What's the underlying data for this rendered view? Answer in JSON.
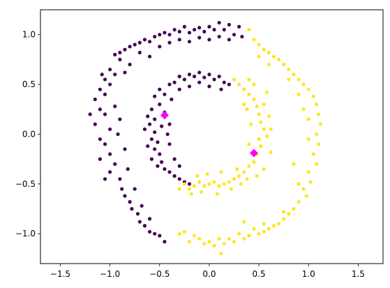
{
  "chart_data": {
    "type": "scatter",
    "title": "",
    "xlabel": "",
    "ylabel": "",
    "xlim": [
      -1.7,
      1.75
    ],
    "ylim": [
      -1.3,
      1.25
    ],
    "x_ticks": [
      -1.5,
      -1.0,
      -0.5,
      0.0,
      0.5,
      1.0,
      1.5
    ],
    "x_tick_labels": [
      "−1.5",
      "−1.0",
      "−0.5",
      "0.0",
      "0.5",
      "1.0",
      "1.5"
    ],
    "y_ticks": [
      -1.0,
      -0.5,
      0.0,
      0.5,
      1.0
    ],
    "y_tick_labels": [
      "−1.0",
      "−0.5",
      "0.0",
      "0.5",
      "1.0"
    ],
    "grid": false,
    "legend": "none",
    "series": [
      {
        "color": "#440154",
        "points": [
          [
            -0.95,
            0.8
          ],
          [
            -0.9,
            0.82
          ],
          [
            -0.85,
            0.85
          ],
          [
            -0.8,
            0.88
          ],
          [
            -0.75,
            0.9
          ],
          [
            -0.7,
            0.92
          ],
          [
            -0.65,
            0.95
          ],
          [
            -0.6,
            0.93
          ],
          [
            -0.55,
            0.98
          ],
          [
            -0.5,
            1.0
          ],
          [
            -0.45,
            1.02
          ],
          [
            -0.4,
            1.0
          ],
          [
            -0.35,
            1.05
          ],
          [
            -0.3,
            1.03
          ],
          [
            -0.25,
            1.08
          ],
          [
            -0.2,
            1.02
          ],
          [
            -0.15,
            1.05
          ],
          [
            -0.1,
            1.07
          ],
          [
            -0.05,
            1.03
          ],
          [
            0.0,
            1.08
          ],
          [
            0.05,
            1.05
          ],
          [
            0.1,
            1.12
          ],
          [
            0.15,
            1.05
          ],
          [
            0.2,
            1.1
          ],
          [
            0.25,
            1.0
          ],
          [
            0.3,
            1.08
          ],
          [
            0.33,
            0.98
          ],
          [
            -0.9,
            0.75
          ],
          [
            -0.8,
            0.7
          ],
          [
            -0.7,
            0.82
          ],
          [
            -0.6,
            0.78
          ],
          [
            -0.5,
            0.88
          ],
          [
            -0.4,
            0.92
          ],
          [
            -0.3,
            0.95
          ],
          [
            -0.2,
            0.93
          ],
          [
            -0.1,
            0.97
          ],
          [
            0.0,
            0.95
          ],
          [
            0.1,
            0.98
          ],
          [
            0.2,
            0.95
          ],
          [
            -1.0,
            0.65
          ],
          [
            -1.05,
            0.55
          ],
          [
            -1.1,
            0.45
          ],
          [
            -1.0,
            0.5
          ],
          [
            -1.15,
            0.35
          ],
          [
            -1.05,
            0.4
          ],
          [
            -1.1,
            0.25
          ],
          [
            -1.2,
            0.2
          ],
          [
            -1.05,
            0.2
          ],
          [
            -1.15,
            0.1
          ],
          [
            -1.0,
            0.05
          ],
          [
            -1.1,
            -0.05
          ],
          [
            -1.05,
            -0.1
          ],
          [
            -1.0,
            -0.2
          ],
          [
            -1.1,
            -0.25
          ],
          [
            -0.95,
            -0.3
          ],
          [
            -1.0,
            -0.38
          ],
          [
            -1.05,
            -0.45
          ],
          [
            -0.9,
            -0.45
          ],
          [
            -0.88,
            -0.55
          ],
          [
            -0.85,
            -0.62
          ],
          [
            -0.8,
            -0.68
          ],
          [
            -0.78,
            -0.75
          ],
          [
            -0.72,
            -0.8
          ],
          [
            -0.7,
            -0.88
          ],
          [
            -0.65,
            -0.92
          ],
          [
            -0.6,
            -0.98
          ],
          [
            -0.55,
            -1.0
          ],
          [
            -0.5,
            -1.02
          ],
          [
            -0.45,
            -1.08
          ],
          [
            -0.95,
            0.28
          ],
          [
            -0.9,
            0.15
          ],
          [
            -0.92,
            0.0
          ],
          [
            -0.85,
            -0.15
          ],
          [
            -0.82,
            -0.35
          ],
          [
            -0.75,
            -0.55
          ],
          [
            -0.68,
            -0.72
          ],
          [
            -0.6,
            -0.85
          ],
          [
            -0.95,
            0.6
          ],
          [
            -0.85,
            0.62
          ],
          [
            -1.08,
            0.6
          ],
          [
            -0.5,
            0.45
          ],
          [
            -0.45,
            0.4
          ],
          [
            -0.4,
            0.5
          ],
          [
            -0.35,
            0.52
          ],
          [
            -0.3,
            0.58
          ],
          [
            -0.25,
            0.55
          ],
          [
            -0.2,
            0.6
          ],
          [
            -0.15,
            0.58
          ],
          [
            -0.1,
            0.62
          ],
          [
            -0.05,
            0.57
          ],
          [
            0.0,
            0.6
          ],
          [
            0.05,
            0.55
          ],
          [
            0.1,
            0.58
          ],
          [
            0.15,
            0.52
          ],
          [
            0.2,
            0.5
          ],
          [
            -0.55,
            0.38
          ],
          [
            -0.5,
            0.3
          ],
          [
            -0.58,
            0.25
          ],
          [
            -0.55,
            0.15
          ],
          [
            -0.6,
            0.1
          ],
          [
            -0.55,
            0.02
          ],
          [
            -0.58,
            -0.05
          ],
          [
            -0.55,
            -0.15
          ],
          [
            -0.5,
            -0.2
          ],
          [
            -0.48,
            -0.28
          ],
          [
            -0.45,
            -0.35
          ],
          [
            -0.4,
            -0.38
          ],
          [
            -0.35,
            -0.42
          ],
          [
            -0.3,
            -0.45
          ],
          [
            -0.25,
            -0.48
          ],
          [
            -0.2,
            -0.5
          ],
          [
            -0.45,
            0.22
          ],
          [
            -0.4,
            0.1
          ],
          [
            -0.42,
            0.0
          ],
          [
            -0.4,
            -0.1
          ],
          [
            -0.35,
            -0.25
          ],
          [
            -0.3,
            -0.32
          ],
          [
            -0.48,
            0.08
          ],
          [
            -0.52,
            -0.08
          ],
          [
            -0.38,
            0.35
          ],
          [
            -0.3,
            0.45
          ],
          [
            -0.2,
            0.48
          ],
          [
            -0.1,
            0.52
          ],
          [
            0.0,
            0.48
          ],
          [
            0.12,
            0.45
          ],
          [
            -0.62,
            0.18
          ],
          [
            -0.65,
            0.05
          ],
          [
            -0.62,
            -0.12
          ],
          [
            -0.58,
            -0.25
          ],
          [
            -0.52,
            -0.32
          ]
        ]
      },
      {
        "color": "#fde725",
        "points": [
          [
            0.4,
            1.05
          ],
          [
            0.45,
            0.95
          ],
          [
            0.5,
            0.9
          ],
          [
            0.55,
            0.85
          ],
          [
            0.6,
            0.82
          ],
          [
            0.65,
            0.78
          ],
          [
            0.7,
            0.75
          ],
          [
            0.75,
            0.7
          ],
          [
            0.8,
            0.65
          ],
          [
            0.85,
            0.6
          ],
          [
            0.9,
            0.55
          ],
          [
            0.95,
            0.5
          ],
          [
            1.0,
            0.45
          ],
          [
            1.05,
            0.38
          ],
          [
            1.08,
            0.3
          ],
          [
            1.1,
            0.2
          ],
          [
            1.12,
            0.1
          ],
          [
            1.08,
            0.0
          ],
          [
            1.1,
            -0.1
          ],
          [
            1.05,
            -0.2
          ],
          [
            1.08,
            -0.3
          ],
          [
            1.0,
            -0.38
          ],
          [
            1.02,
            -0.48
          ],
          [
            0.95,
            -0.55
          ],
          [
            0.98,
            -0.62
          ],
          [
            0.9,
            -0.68
          ],
          [
            0.85,
            -0.75
          ],
          [
            0.8,
            -0.8
          ],
          [
            0.75,
            -0.85
          ],
          [
            0.7,
            -0.9
          ],
          [
            0.65,
            -0.92
          ],
          [
            0.6,
            -0.95
          ],
          [
            0.55,
            -0.98
          ],
          [
            0.5,
            -1.0
          ],
          [
            0.45,
            -0.95
          ],
          [
            0.4,
            -1.02
          ],
          [
            0.35,
            -1.05
          ],
          [
            0.3,
            -1.0
          ],
          [
            0.25,
            -1.08
          ],
          [
            0.2,
            -1.05
          ],
          [
            0.15,
            -1.1
          ],
          [
            0.1,
            -1.05
          ],
          [
            0.05,
            -1.12
          ],
          [
            0.0,
            -1.08
          ],
          [
            -0.05,
            -1.1
          ],
          [
            -0.1,
            -1.05
          ],
          [
            -0.15,
            -1.02
          ],
          [
            -0.2,
            -1.08
          ],
          [
            -0.25,
            -0.98
          ],
          [
            -0.3,
            -1.0
          ],
          [
            0.12,
            -1.2
          ],
          [
            0.35,
            -0.88
          ],
          [
            0.55,
            -0.9
          ],
          [
            0.75,
            -0.78
          ],
          [
            0.9,
            -0.5
          ],
          [
            1.0,
            -0.05
          ],
          [
            1.0,
            0.15
          ],
          [
            0.9,
            0.4
          ],
          [
            0.8,
            0.55
          ],
          [
            0.6,
            0.7
          ],
          [
            0.5,
            0.78
          ],
          [
            0.95,
            0.25
          ],
          [
            0.85,
            -0.3
          ],
          [
            0.3,
            0.5
          ],
          [
            0.35,
            0.45
          ],
          [
            0.4,
            0.4
          ],
          [
            0.45,
            0.35
          ],
          [
            0.48,
            0.28
          ],
          [
            0.5,
            0.2
          ],
          [
            0.52,
            0.12
          ],
          [
            0.55,
            0.05
          ],
          [
            0.5,
            -0.05
          ],
          [
            0.52,
            -0.12
          ],
          [
            0.48,
            -0.2
          ],
          [
            0.45,
            -0.28
          ],
          [
            0.4,
            -0.32
          ],
          [
            0.35,
            -0.38
          ],
          [
            0.3,
            -0.42
          ],
          [
            0.25,
            -0.45
          ],
          [
            0.2,
            -0.48
          ],
          [
            0.15,
            -0.5
          ],
          [
            0.1,
            -0.52
          ],
          [
            0.05,
            -0.48
          ],
          [
            0.0,
            -0.5
          ],
          [
            -0.05,
            -0.52
          ],
          [
            -0.1,
            -0.48
          ],
          [
            -0.15,
            -0.52
          ],
          [
            -0.2,
            -0.55
          ],
          [
            -0.25,
            -0.5
          ],
          [
            -0.3,
            -0.55
          ],
          [
            0.25,
            0.55
          ],
          [
            0.4,
            0.55
          ],
          [
            0.38,
            0.25
          ],
          [
            0.42,
            0.1
          ],
          [
            0.4,
            -0.1
          ],
          [
            0.38,
            -0.45
          ],
          [
            0.28,
            -0.35
          ],
          [
            0.12,
            -0.38
          ],
          [
            -0.02,
            -0.4
          ],
          [
            -0.12,
            -0.42
          ],
          [
            0.55,
            0.3
          ],
          [
            0.6,
            0.18
          ],
          [
            0.58,
            -0.02
          ],
          [
            0.62,
            -0.18
          ],
          [
            0.55,
            -0.35
          ],
          [
            0.58,
            0.42
          ],
          [
            0.45,
            0.5
          ],
          [
            0.62,
            0.05
          ],
          [
            0.48,
            -0.42
          ],
          [
            0.22,
            -0.55
          ],
          [
            0.08,
            -0.6
          ],
          [
            -0.08,
            -0.58
          ],
          [
            -0.18,
            -0.6
          ],
          [
            0.32,
            -0.5
          ],
          [
            0.35,
            0.3
          ]
        ]
      },
      {
        "color": "#ff00ff",
        "marker": "diamond",
        "points": [
          [
            -0.45,
            0.19
          ],
          [
            0.45,
            -0.19
          ]
        ]
      }
    ]
  }
}
